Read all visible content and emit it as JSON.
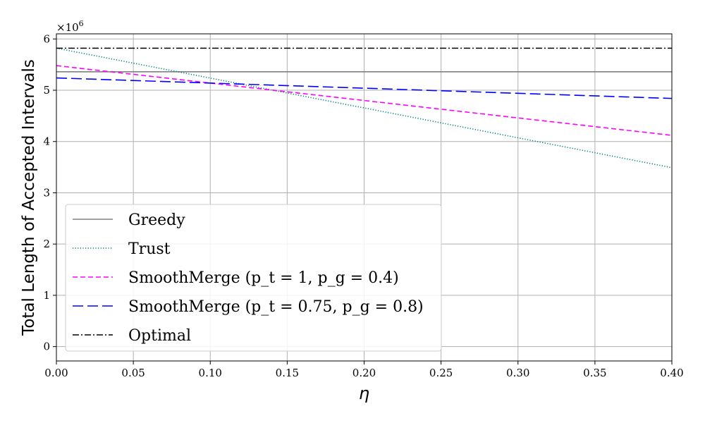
{
  "chart_data": {
    "type": "line",
    "xlabel": "η",
    "ylabel": "Total Length of Accepted Intervals",
    "y_scale_label": "×10",
    "y_scale_exponent": "6",
    "xlim": [
      0.0,
      0.4
    ],
    "ylim": [
      -0.28,
      6.1
    ],
    "x_ticks": [
      0.0,
      0.05,
      0.1,
      0.15,
      0.2,
      0.25,
      0.3,
      0.35,
      0.4
    ],
    "x_tick_labels": [
      "0.00",
      "0.05",
      "0.10",
      "0.15",
      "0.20",
      "0.25",
      "0.30",
      "0.35",
      "0.40"
    ],
    "y_ticks": [
      0,
      1,
      2,
      3,
      4,
      5,
      6
    ],
    "y_tick_labels": [
      "0",
      "1",
      "2",
      "3",
      "4",
      "5",
      "6"
    ],
    "grid": true,
    "legend_position": "lower-left",
    "series": [
      {
        "name": "Greedy",
        "color": "#808080",
        "dash": "solid",
        "x": [
          0.0,
          0.4
        ],
        "y": [
          5.36,
          5.36
        ]
      },
      {
        "name": "Trust",
        "color": "#008080",
        "dash": "dotted",
        "x": [
          0.0,
          0.4
        ],
        "y": [
          5.82,
          3.49
        ]
      },
      {
        "name": "SmoothMerge (p_t = 1, p_g = 0.4)",
        "color": "#ff00ff",
        "dash": "dashed",
        "x": [
          0.0,
          0.4
        ],
        "y": [
          5.48,
          4.12
        ]
      },
      {
        "name": "SmoothMerge (p_t = 0.75, p_g = 0.8)",
        "color": "#0000ff",
        "dash": "longdash",
        "x": [
          0.0,
          0.4
        ],
        "y": [
          5.24,
          4.84
        ]
      },
      {
        "name": "Optimal",
        "color": "#000000",
        "dash": "dashdot",
        "x": [
          0.0,
          0.4
        ],
        "y": [
          5.82,
          5.82
        ]
      }
    ]
  }
}
